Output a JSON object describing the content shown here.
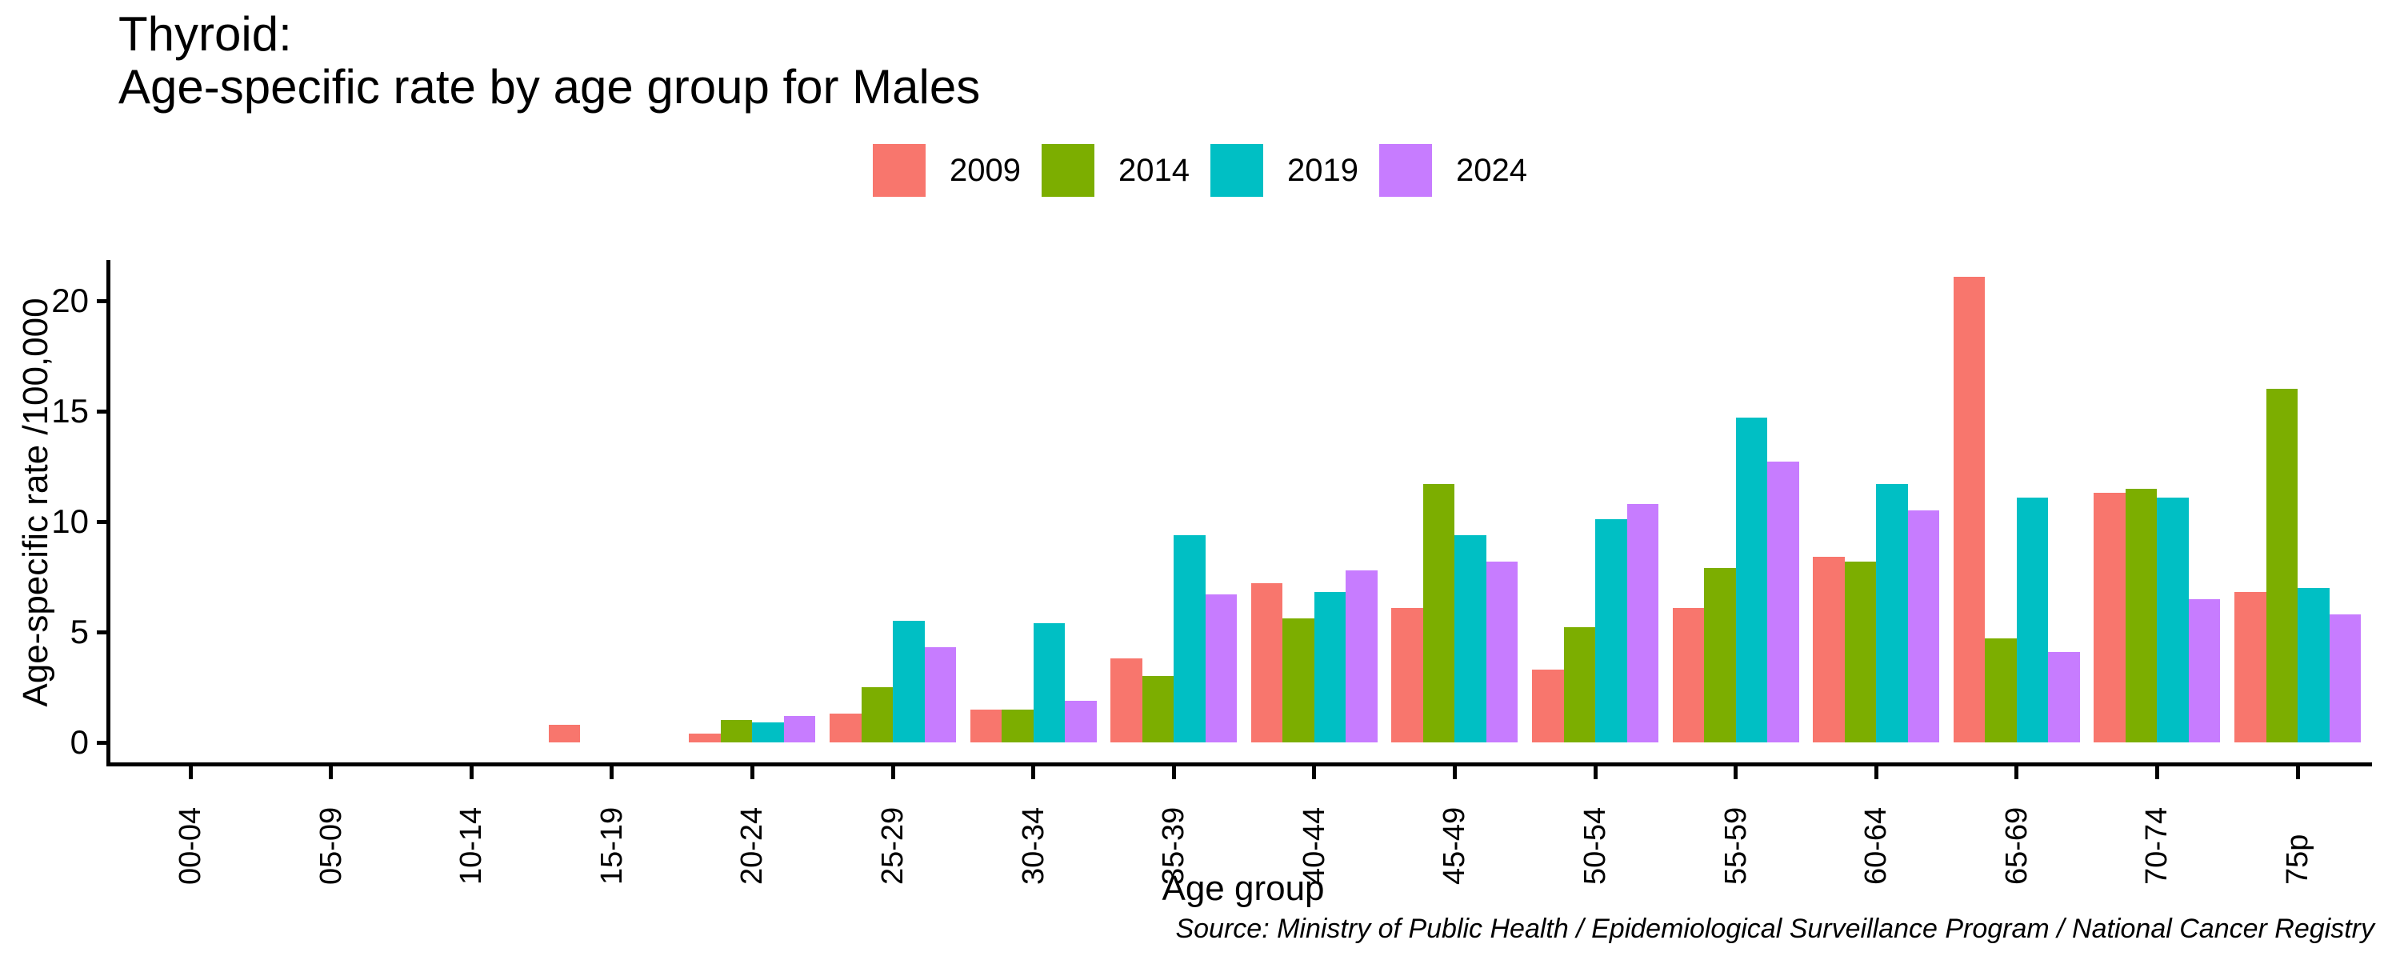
{
  "title": {
    "line1": "Thyroid:",
    "line2": "Age-specific rate by age group for Males"
  },
  "legend": {
    "items": [
      {
        "label": "2009",
        "color": "#F8766D"
      },
      {
        "label": "2014",
        "color": "#7CAE00"
      },
      {
        "label": "2019",
        "color": "#00BFC4"
      },
      {
        "label": "2024",
        "color": "#C77CFF"
      }
    ]
  },
  "axes": {
    "y_label": "Age-specific rate /100,000",
    "x_label": "Age group",
    "y_ticks": [
      0,
      5,
      10,
      15,
      20
    ]
  },
  "source": "Source: Ministry of Public Health / Epidemiological Surveillance Program / National Cancer Registry",
  "chart_data": {
    "type": "bar",
    "title": "Thyroid: Age-specific rate by age group for Males",
    "xlabel": "Age group",
    "ylabel": "Age-specific rate /100,000",
    "ylim": [
      0,
      22
    ],
    "grid": false,
    "legend_position": "top-center",
    "categories": [
      "00-04",
      "05-09",
      "10-14",
      "15-19",
      "20-24",
      "25-29",
      "30-34",
      "35-39",
      "40-44",
      "45-49",
      "50-54",
      "55-59",
      "60-64",
      "65-69",
      "70-74",
      "75p"
    ],
    "series": [
      {
        "name": "2009",
        "color": "#F8766D",
        "values": [
          0,
          0,
          0,
          0.8,
          0.4,
          1.3,
          1.5,
          3.8,
          7.2,
          6.1,
          3.3,
          6.1,
          8.4,
          21.1,
          11.3,
          6.8
        ]
      },
      {
        "name": "2014",
        "color": "#7CAE00",
        "values": [
          0,
          0,
          0,
          0,
          1.0,
          2.5,
          1.5,
          3.0,
          5.6,
          11.7,
          5.2,
          7.9,
          8.2,
          4.7,
          11.5,
          16.0
        ]
      },
      {
        "name": "2019",
        "color": "#00BFC4",
        "values": [
          0,
          0,
          0,
          0,
          0.9,
          5.5,
          5.4,
          9.4,
          6.8,
          9.4,
          10.1,
          14.7,
          11.7,
          11.1,
          11.1,
          7.0
        ]
      },
      {
        "name": "2024",
        "color": "#C77CFF",
        "values": [
          0,
          0,
          0,
          0,
          1.2,
          4.3,
          1.9,
          6.7,
          7.8,
          8.2,
          10.8,
          12.7,
          10.5,
          4.1,
          6.5,
          5.8
        ]
      }
    ]
  }
}
